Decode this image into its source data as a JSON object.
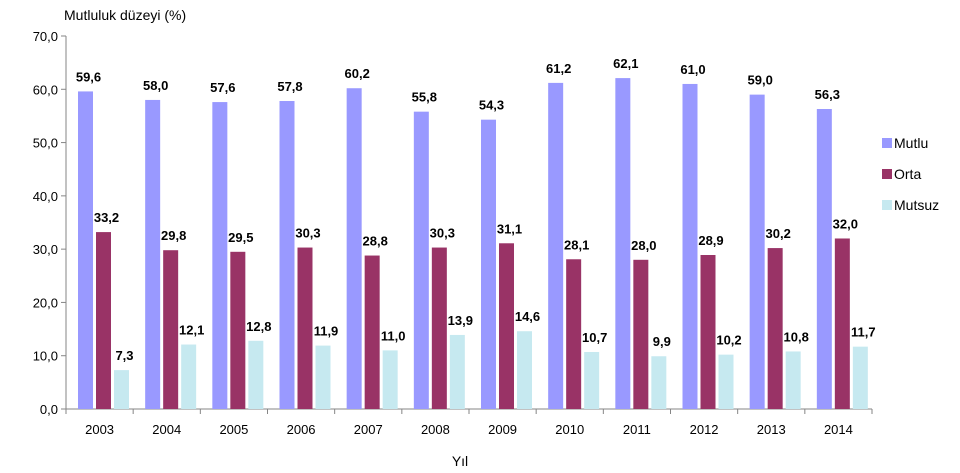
{
  "chart_data": {
    "type": "bar",
    "ylabel": "Mutluluk düzeyi (%)",
    "xlabel": "Yıl",
    "ylim": [
      0,
      70
    ],
    "yticks": [
      "0,0",
      "10,0",
      "20,0",
      "30,0",
      "40,0",
      "50,0",
      "60,0",
      "70,0"
    ],
    "categories": [
      "2003",
      "2004",
      "2005",
      "2006",
      "2007",
      "2008",
      "2009",
      "2010",
      "2011",
      "2012",
      "2013",
      "2014"
    ],
    "series": [
      {
        "name": "Mutlu",
        "color": "#9999ff",
        "values": [
          59.6,
          58.0,
          57.6,
          57.8,
          60.2,
          55.8,
          54.3,
          61.2,
          62.1,
          61.0,
          59.0,
          56.3
        ],
        "labels": [
          "59,6",
          "58,0",
          "57,6",
          "57,8",
          "60,2",
          "55,8",
          "54,3",
          "61,2",
          "62,1",
          "61,0",
          "59,0",
          "56,3"
        ]
      },
      {
        "name": "Orta",
        "color": "#993366",
        "values": [
          33.2,
          29.8,
          29.5,
          30.3,
          28.8,
          30.3,
          31.1,
          28.1,
          28.0,
          28.9,
          30.2,
          32.0
        ],
        "labels": [
          "33,2",
          "29,8",
          "29,5",
          "30,3",
          "28,8",
          "30,3",
          "31,1",
          "28,1",
          "28,0",
          "28,9",
          "30,2",
          "32,0"
        ]
      },
      {
        "name": "Mutsuz",
        "color": "#c6e9f0",
        "values": [
          7.3,
          12.1,
          12.8,
          11.9,
          11.0,
          13.9,
          14.6,
          10.7,
          9.9,
          10.2,
          10.8,
          11.7
        ],
        "labels": [
          "7,3",
          "12,1",
          "12,8",
          "11,9",
          "11,0",
          "13,9",
          "14,6",
          "10,7",
          "9,9",
          "10,2",
          "10,8",
          "11,7"
        ]
      }
    ],
    "legend_position": "right",
    "grid": false
  }
}
